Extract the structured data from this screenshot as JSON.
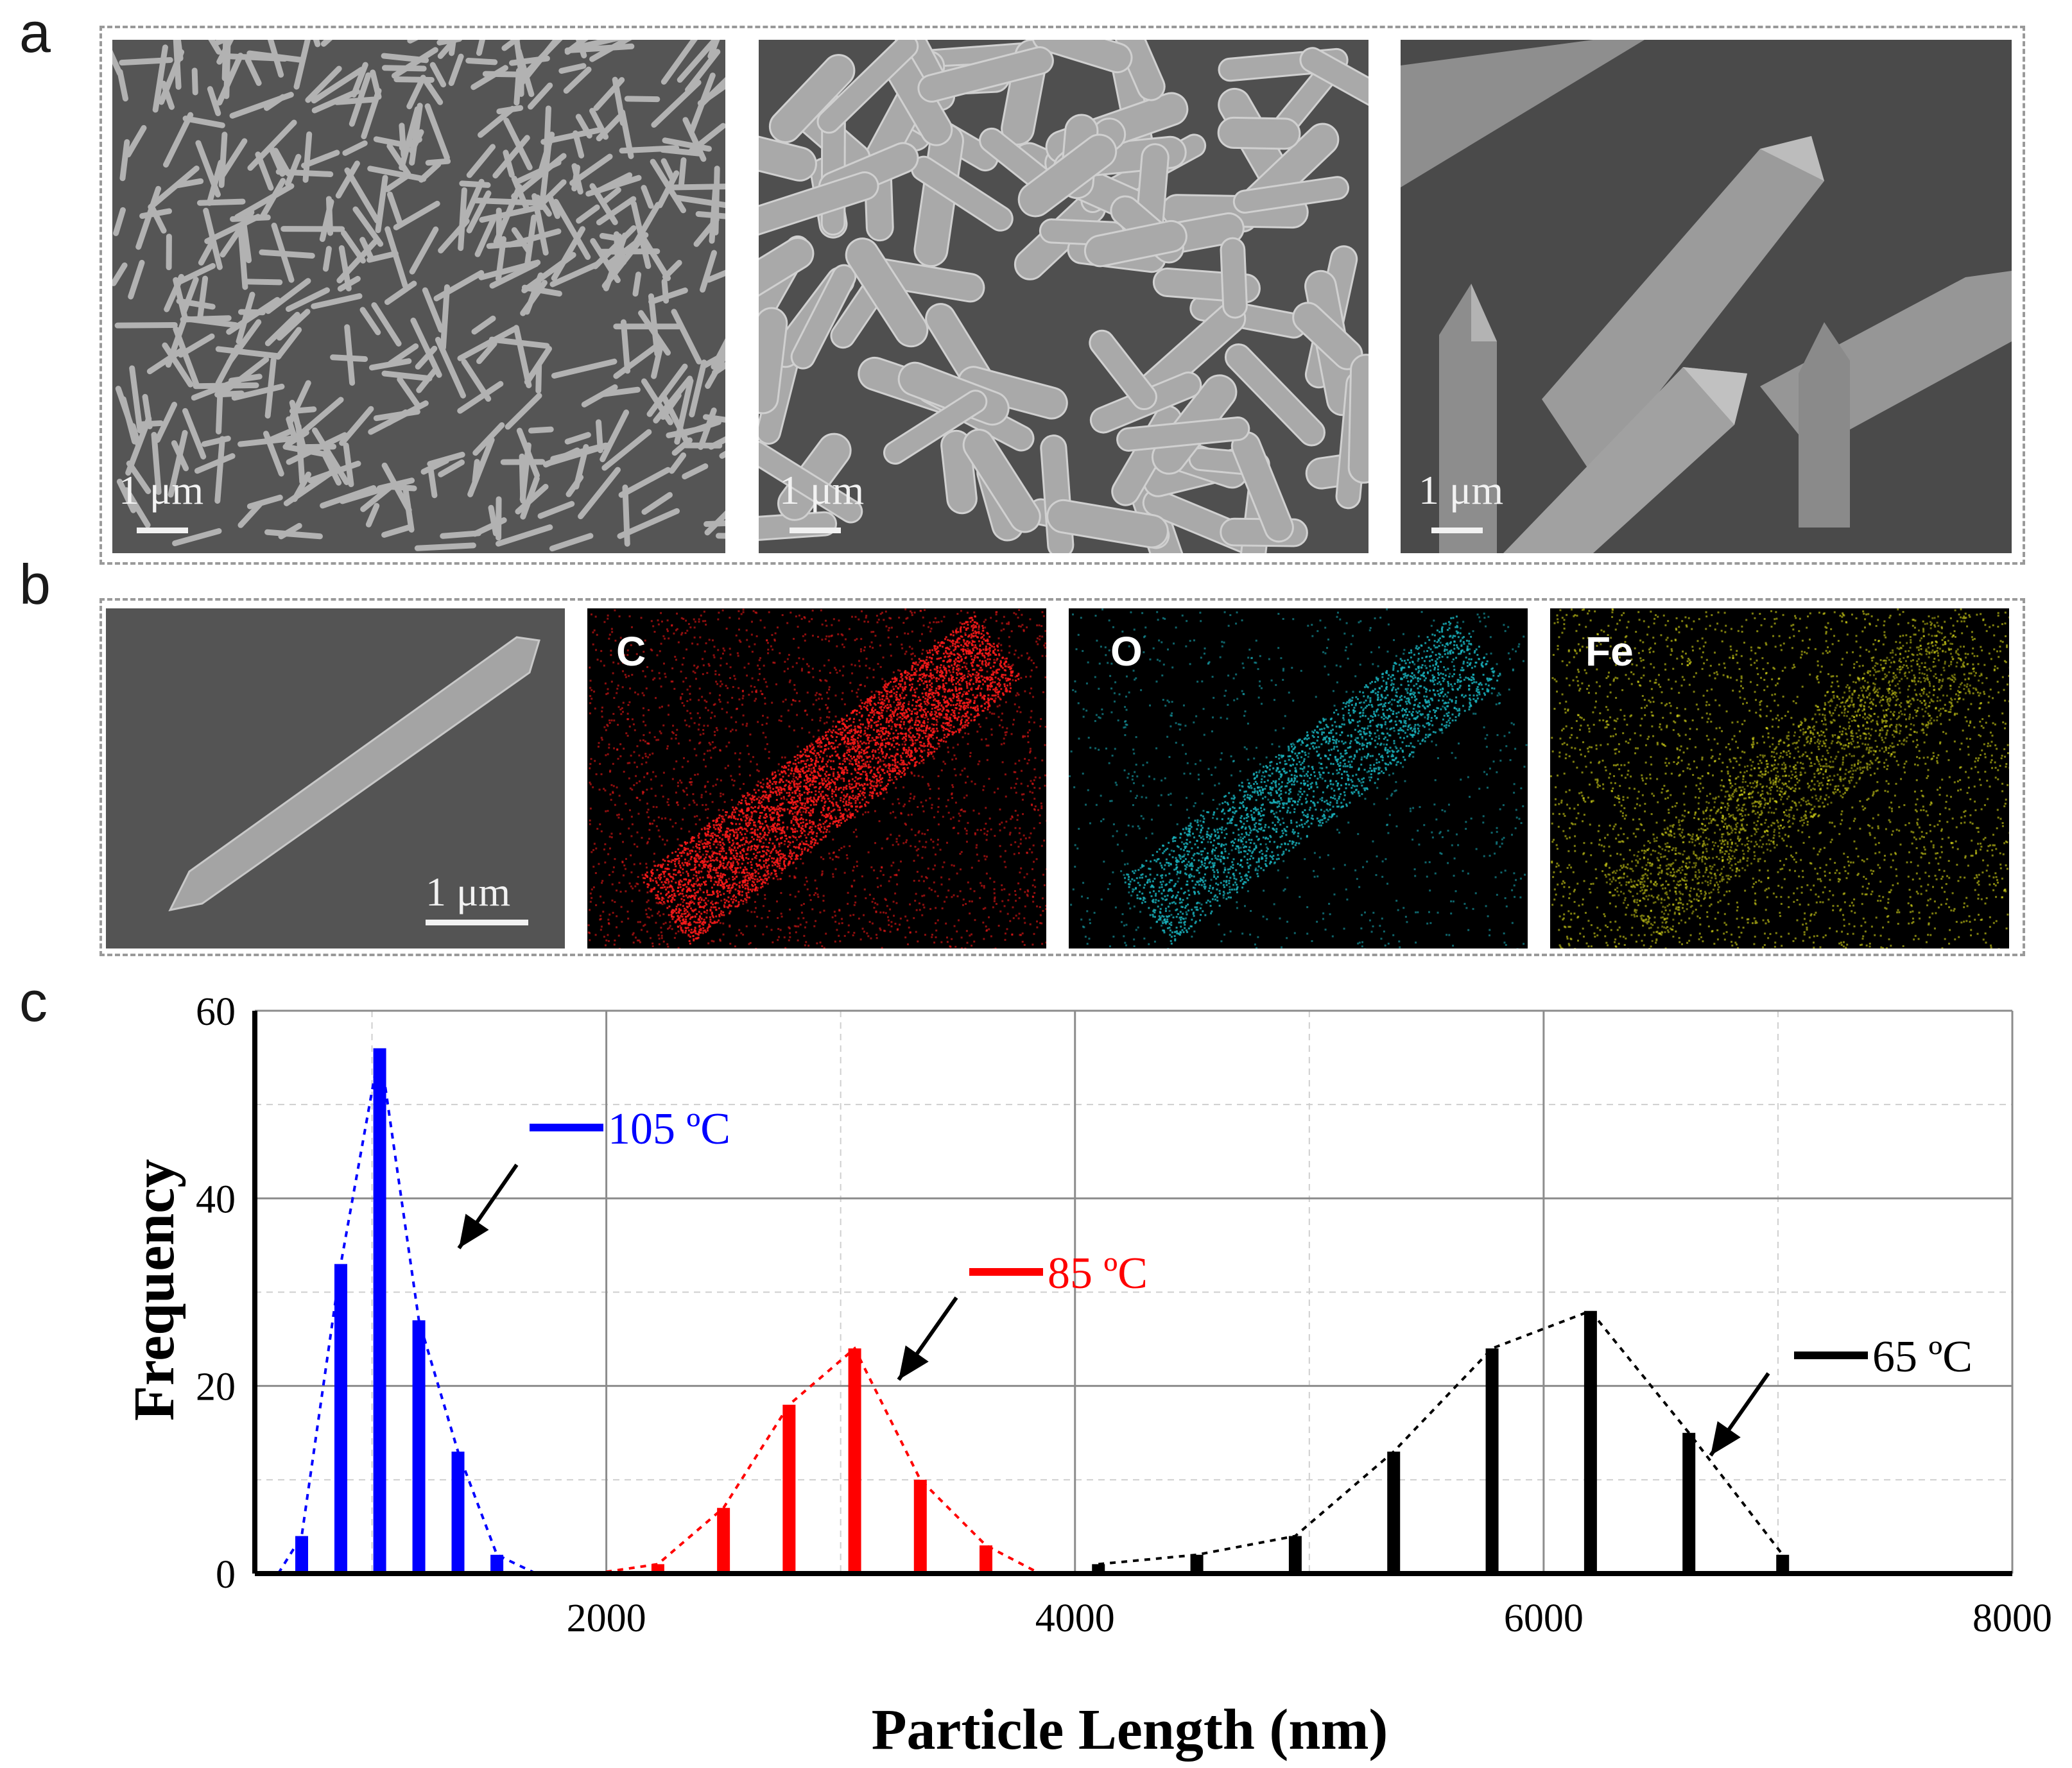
{
  "panels": {
    "a": {
      "letter": "a",
      "images": [
        {
          "scale_label": "1 μm"
        },
        {
          "scale_label": "1 μm"
        },
        {
          "scale_label": "1 μm"
        }
      ]
    },
    "b": {
      "letter": "b",
      "sem_scale_label": "1 μm",
      "maps": [
        {
          "element": "C",
          "color": "#ff1a1a"
        },
        {
          "element": "O",
          "color": "#19b5c0"
        },
        {
          "element": "Fe",
          "color": "#e6e61a"
        }
      ]
    },
    "c": {
      "letter": "c"
    }
  },
  "chart_data": {
    "type": "bar",
    "xlabel": "Particle Length (nm)",
    "ylabel": "Frequency",
    "xlim": [
      500,
      8000
    ],
    "ylim": [
      0,
      60
    ],
    "xticks": [
      2000,
      4000,
      6000,
      8000
    ],
    "yticks": [
      0,
      20,
      40,
      60
    ],
    "grid": true,
    "series": [
      {
        "name": "105 ºC",
        "label": "105 ºC",
        "color": "#0000ff",
        "x": [
          700,
          867,
          1033,
          1200,
          1367,
          1533
        ],
        "values": [
          4,
          33,
          56,
          27,
          13,
          2
        ],
        "fit_x": [
          600,
          700,
          867,
          1033,
          1200,
          1367,
          1533,
          1700
        ],
        "fit_y": [
          0,
          4,
          33,
          56,
          27,
          13,
          2,
          0
        ]
      },
      {
        "name": "85 ºC",
        "label": "85 ºC",
        "color": "#ff0000",
        "x": [
          2220,
          2500,
          2780,
          3060,
          3340,
          3620
        ],
        "values": [
          1,
          7,
          18,
          24,
          10,
          3
        ],
        "fit_x": [
          1950,
          2220,
          2500,
          2780,
          3060,
          3340,
          3620,
          3850
        ],
        "fit_y": [
          0,
          1,
          7,
          18,
          24,
          10,
          3,
          0
        ]
      },
      {
        "name": "65 ºC",
        "label": "65 ºC",
        "color": "#000000",
        "x": [
          4100,
          4520,
          4940,
          5360,
          5780,
          6200,
          6620,
          7020
        ],
        "values": [
          1,
          2,
          4,
          13,
          24,
          28,
          15,
          2
        ],
        "fit_x": [
          4100,
          4520,
          4940,
          5360,
          5780,
          6200,
          6620,
          7020
        ],
        "fit_y": [
          1,
          2,
          4,
          13,
          24,
          28,
          15,
          2
        ]
      }
    ]
  }
}
